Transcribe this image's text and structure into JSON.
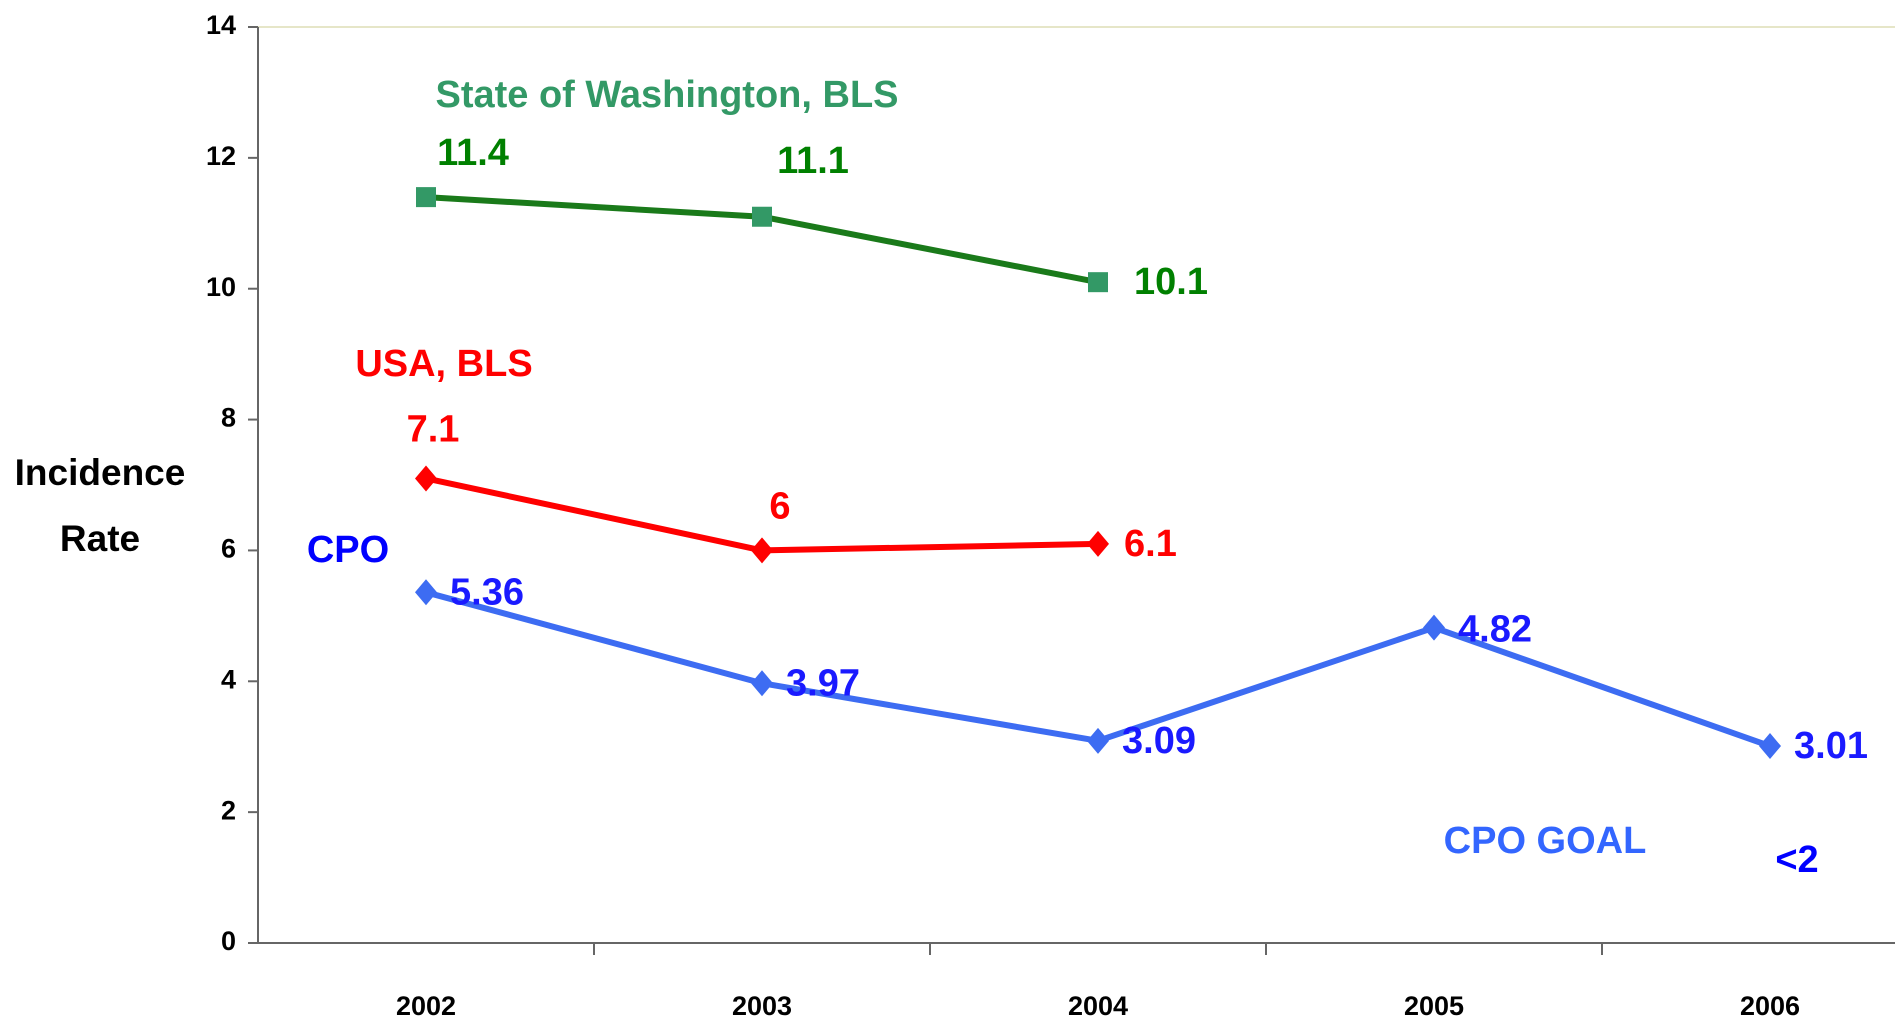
{
  "chart_data": {
    "type": "line",
    "y_label": "Incidence Rate",
    "categories": [
      "2002",
      "2003",
      "2004",
      "2005",
      "2006"
    ],
    "series": [
      {
        "name": "State of Washington, BLS",
        "color": "#1a7a1a",
        "marker_color": "#339966",
        "label_color": "#008000",
        "name_color": "#339966",
        "marker": "square",
        "values": [
          11.4,
          11.1,
          10.1,
          null,
          null
        ]
      },
      {
        "name": "USA, BLS",
        "color": "#ff0000",
        "marker_color": "#ff0000",
        "label_color": "#ff0000",
        "name_color": "#ff0000",
        "marker": "diamond",
        "values": [
          7.1,
          6,
          6.1,
          null,
          null
        ]
      },
      {
        "name": "CPO",
        "color": "#3d6cf2",
        "marker_color": "#3d6cf2",
        "label_color": "#1a1aff",
        "name_color": "#0000ff",
        "marker": "diamond",
        "values": [
          5.36,
          3.97,
          3.09,
          4.82,
          3.01
        ]
      }
    ],
    "annotations": [
      {
        "text": "CPO GOAL",
        "color": "#3366ff"
      },
      {
        "text": "<2",
        "color": "#0000ff"
      }
    ],
    "ylim": [
      0,
      14
    ],
    "yticks": [
      0,
      2,
      4,
      6,
      8,
      10,
      12,
      14
    ],
    "grid": false
  }
}
